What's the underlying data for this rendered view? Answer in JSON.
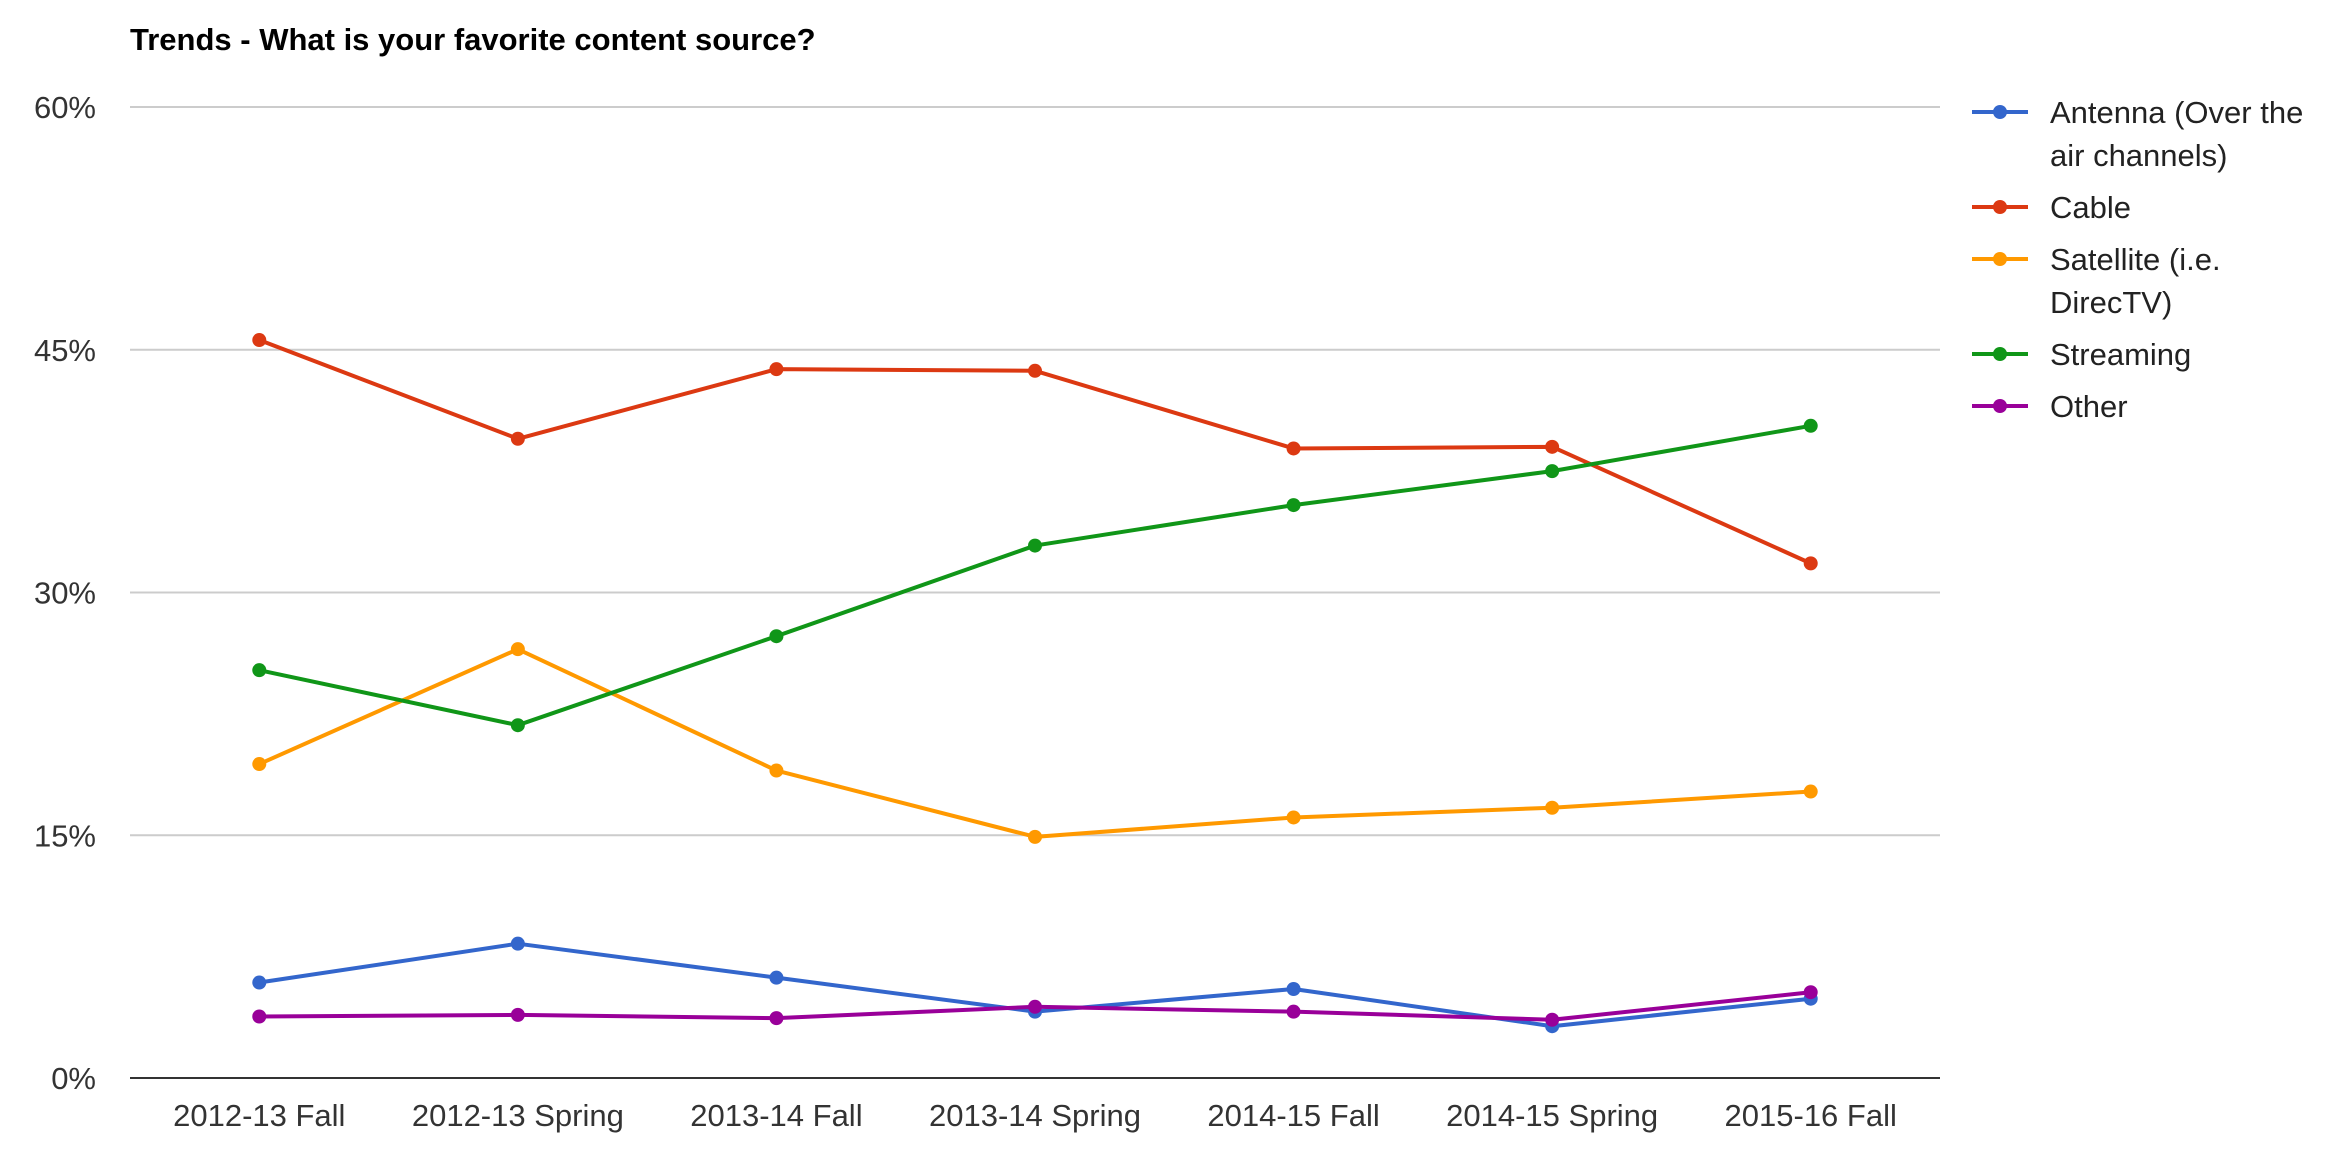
{
  "chart_data": {
    "type": "line",
    "title": "Trends - What is your favorite content source?",
    "xlabel": "",
    "ylabel": "",
    "ylim": [
      0,
      60
    ],
    "yticks": [
      "0%",
      "15%",
      "30%",
      "45%",
      "60%"
    ],
    "ytick_values": [
      0,
      15,
      30,
      45,
      60
    ],
    "categories": [
      "2012-13 Fall",
      "2012-13 Spring",
      "2013-14 Fall",
      "2013-14 Spring",
      "2014-15 Fall",
      "2014-15 Spring",
      "2015-16 Fall"
    ],
    "grid": true,
    "legend_position": "right",
    "series": [
      {
        "name": "Antenna (Over the air channels)",
        "legend_lines": [
          "Antenna (Over the",
          "air channels)"
        ],
        "color": "#3366cc",
        "values": [
          5.9,
          8.3,
          6.2,
          4.1,
          5.5,
          3.2,
          4.9
        ]
      },
      {
        "name": "Cable",
        "legend_lines": [
          "Cable"
        ],
        "color": "#dc3912",
        "values": [
          45.6,
          39.5,
          43.8,
          43.7,
          38.9,
          39.0,
          31.8
        ]
      },
      {
        "name": "Satellite (i.e. DirecTV)",
        "legend_lines": [
          "Satellite (i.e.",
          "DirecTV)"
        ],
        "color": "#ff9900",
        "values": [
          19.4,
          26.5,
          19.0,
          14.9,
          16.1,
          16.7,
          17.7
        ]
      },
      {
        "name": "Streaming",
        "legend_lines": [
          "Streaming"
        ],
        "color": "#109618",
        "values": [
          25.2,
          21.8,
          27.3,
          32.9,
          35.4,
          37.5,
          40.3
        ]
      },
      {
        "name": "Other",
        "legend_lines": [
          "Other"
        ],
        "color": "#990099",
        "values": [
          3.8,
          3.9,
          3.7,
          4.4,
          4.1,
          3.6,
          5.3
        ]
      }
    ]
  }
}
